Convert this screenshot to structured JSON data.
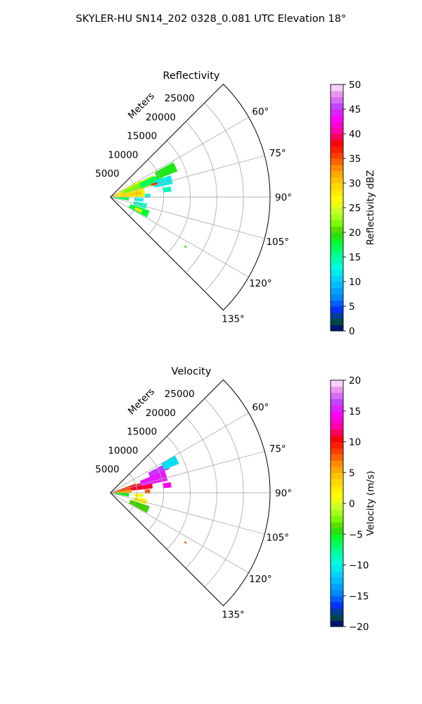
{
  "figure": {
    "suptitle": "SKYLER-HU  SN14_202  0328_0.081 UTC Elevation 18°"
  },
  "chart_data": [
    {
      "type": "heatmap",
      "projection": "polar-sector",
      "title": "Reflectivity",
      "radial_label": "Meters",
      "azimuth_range_deg": [
        45,
        135
      ],
      "range_max_m": 30000,
      "range_ticks": [
        5000,
        10000,
        15000,
        20000,
        25000
      ],
      "range_tick_labels": [
        "5000",
        "10000",
        "15000",
        "20000",
        "25000"
      ],
      "azimuth_ticks": [
        60,
        75,
        90,
        105,
        120,
        135
      ],
      "azimuth_tick_labels": [
        "60°",
        "75°",
        "90°",
        "105°",
        "120°",
        "135°"
      ],
      "grid": true,
      "colorbar": {
        "label": "Reflectivity dBZ",
        "min": 0,
        "max": 50,
        "ticks": [
          0,
          5,
          10,
          15,
          20,
          25,
          30,
          35,
          40,
          45,
          50
        ],
        "tick_labels": [
          "0",
          "5",
          "10",
          "15",
          "20",
          "25",
          "30",
          "35",
          "40",
          "45",
          "50"
        ],
        "levels": 40
      },
      "echoes": [
        {
          "az_start": 61,
          "az_end": 90,
          "r_start": 0,
          "r_end": 6500,
          "value": 27
        },
        {
          "az_start": 63,
          "az_end": 74,
          "r_start": 2500,
          "r_end": 9000,
          "value": 22
        },
        {
          "az_start": 65,
          "az_end": 73,
          "r_start": 6000,
          "r_end": 10500,
          "value": 17
        },
        {
          "az_start": 61,
          "az_end": 69,
          "r_start": 9500,
          "r_end": 13500,
          "value": 19
        },
        {
          "az_start": 70,
          "az_end": 78,
          "r_start": 8500,
          "r_end": 12000,
          "value": 12
        },
        {
          "az_start": 72,
          "az_end": 75,
          "r_start": 8000,
          "r_end": 9200,
          "value": 36
        },
        {
          "az_start": 78,
          "az_end": 86,
          "r_start": 2000,
          "r_end": 6000,
          "value": 30
        },
        {
          "az_start": 90,
          "az_end": 101,
          "r_start": 0,
          "r_end": 3500,
          "value": 17
        },
        {
          "az_start": 92,
          "az_end": 98,
          "r_start": 4500,
          "r_end": 6200,
          "value": 12
        },
        {
          "az_start": 100,
          "az_end": 108,
          "r_start": 4500,
          "r_end": 7000,
          "value": 14
        },
        {
          "az_start": 109,
          "az_end": 119,
          "r_start": 4000,
          "r_end": 7800,
          "value": 18
        },
        {
          "az_start": 112,
          "az_end": 117,
          "r_start": 5000,
          "r_end": 6500,
          "value": 28
        },
        {
          "az_start": 85,
          "az_end": 91,
          "r_start": 6500,
          "r_end": 7500,
          "value": 12
        },
        {
          "az_start": 80,
          "az_end": 85,
          "r_start": 10000,
          "r_end": 11500,
          "value": 14
        },
        {
          "az_start": 123,
          "az_end": 124,
          "r_start": 16700,
          "r_end": 17100,
          "value": 20
        }
      ]
    },
    {
      "type": "heatmap",
      "projection": "polar-sector",
      "title": "Velocity",
      "radial_label": "Meters",
      "azimuth_range_deg": [
        45,
        135
      ],
      "range_max_m": 30000,
      "range_ticks": [
        5000,
        10000,
        15000,
        20000,
        25000
      ],
      "range_tick_labels": [
        "5000",
        "10000",
        "15000",
        "20000",
        "25000"
      ],
      "azimuth_ticks": [
        60,
        75,
        90,
        105,
        120,
        135
      ],
      "azimuth_tick_labels": [
        "60°",
        "75°",
        "90°",
        "105°",
        "120°",
        "135°"
      ],
      "grid": true,
      "colorbar": {
        "label": "Velocity (m/s)",
        "min": -20,
        "max": 20,
        "ticks": [
          -20,
          -15,
          -10,
          -5,
          0,
          5,
          10,
          15,
          20
        ],
        "tick_labels": [
          "−20",
          "−15",
          "−10",
          "−5",
          "0",
          "5",
          "10",
          "15",
          "20"
        ],
        "levels": 40
      },
      "echoes": [
        {
          "az_start": 78,
          "az_end": 90,
          "r_start": 0,
          "r_end": 4000,
          "value": 6
        },
        {
          "az_start": 70,
          "az_end": 80,
          "r_start": 0,
          "r_end": 5000,
          "value": 9
        },
        {
          "az_start": 72,
          "az_end": 84,
          "r_start": 4000,
          "r_end": 8000,
          "value": 11
        },
        {
          "az_start": 68,
          "az_end": 78,
          "r_start": 6000,
          "r_end": 11000,
          "value": 15
        },
        {
          "az_start": 62,
          "az_end": 68,
          "r_start": 8000,
          "r_end": 12000,
          "value": 16
        },
        {
          "az_start": 60,
          "az_end": 67,
          "r_start": 11000,
          "r_end": 14000,
          "value": -11
        },
        {
          "az_start": 80,
          "az_end": 85,
          "r_start": 10000,
          "r_end": 11500,
          "value": 14
        },
        {
          "az_start": 90,
          "az_end": 102,
          "r_start": 0,
          "r_end": 3500,
          "value": -5
        },
        {
          "az_start": 92,
          "az_end": 98,
          "r_start": 4500,
          "r_end": 6200,
          "value": 1
        },
        {
          "az_start": 100,
          "az_end": 108,
          "r_start": 4500,
          "r_end": 7000,
          "value": 2
        },
        {
          "az_start": 109,
          "az_end": 119,
          "r_start": 4000,
          "r_end": 7800,
          "value": -4
        },
        {
          "az_start": 85,
          "az_end": 91,
          "r_start": 6500,
          "r_end": 7500,
          "value": 8
        },
        {
          "az_start": 123,
          "az_end": 124,
          "r_start": 16700,
          "r_end": 17100,
          "value": 8
        }
      ]
    }
  ]
}
